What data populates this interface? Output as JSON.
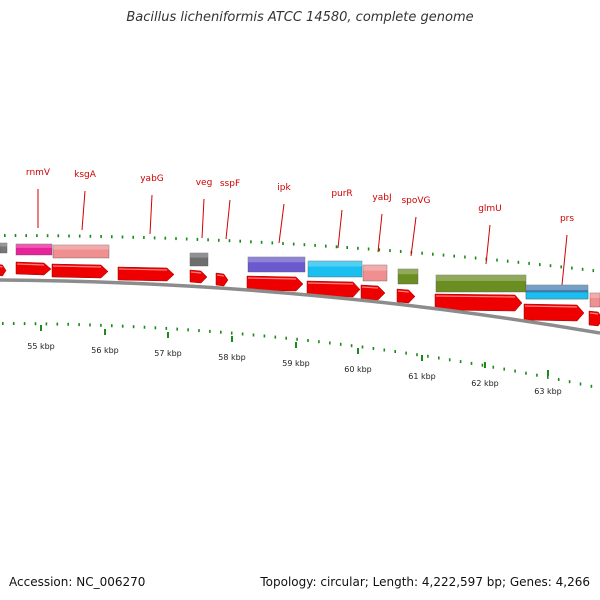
{
  "title": "Bacillus licheniformis ATCC 14580, complete genome",
  "footer": {
    "accession": "Accession: NC_006270",
    "summary": "Topology: circular; Length: 4,222,597 bp; Genes: 4,266"
  },
  "colors": {
    "gene_label": "#d00000",
    "cds_arrow": "#ee0000",
    "tick": "#1a8a1a",
    "backbone": "#8c8c8c"
  },
  "genes": [
    {
      "name": "rnmV",
      "color": "#e8229a"
    },
    {
      "name": "ksgA",
      "color": "#ef8f8f"
    },
    {
      "name": "yabG",
      "color": null
    },
    {
      "name": "veg",
      "color": "#6e6e6e"
    },
    {
      "name": "sspF",
      "color": null
    },
    {
      "name": "ipk",
      "color": "#6a5acd"
    },
    {
      "name": "purR",
      "color": "#18bff0"
    },
    {
      "name": "yabJ",
      "color": "#ef8f8f"
    },
    {
      "name": "spoVG",
      "color": "#6b8e23"
    },
    {
      "name": "glmU",
      "color": "#6b8e23"
    },
    {
      "name": "prs",
      "color": "#4682b4"
    }
  ],
  "kbp_labels": [
    "55 kbp",
    "56 kbp",
    "57 kbp",
    "58 kbp",
    "59 kbp",
    "60 kbp",
    "61 kbp",
    "62 kbp",
    "63 kbp"
  ]
}
